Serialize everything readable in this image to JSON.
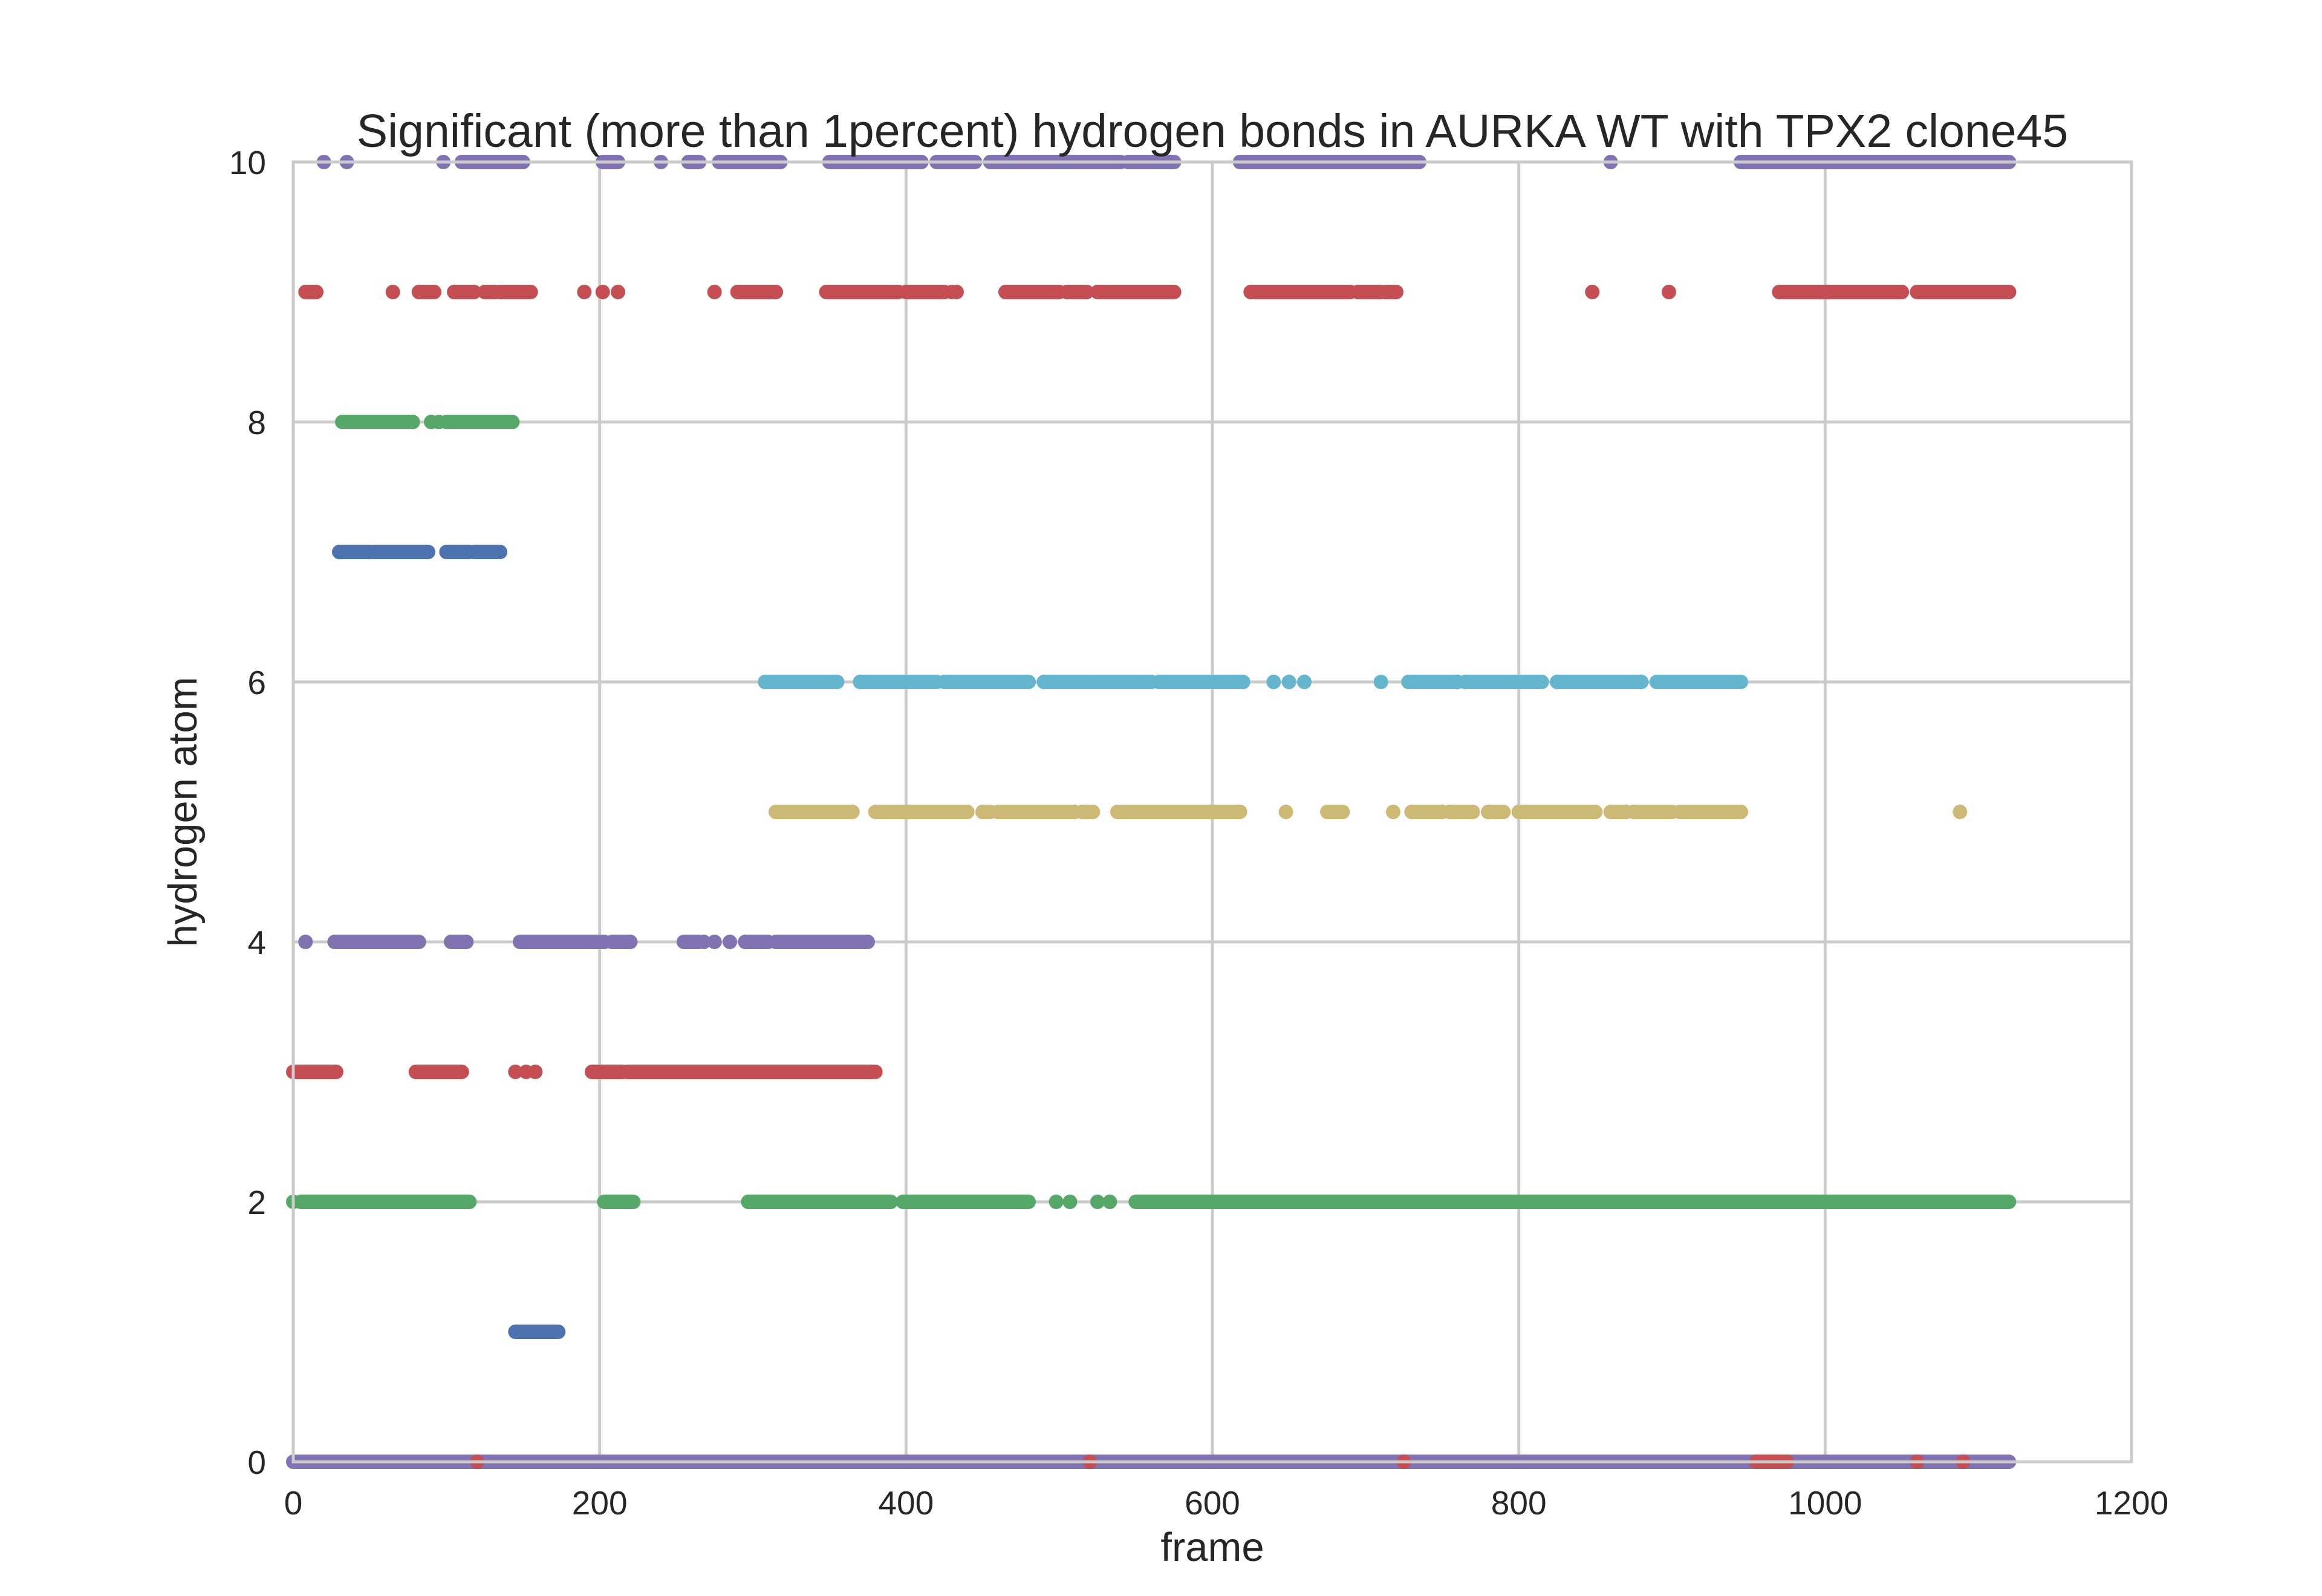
{
  "chart_data": {
    "type": "scatter",
    "title": "Significant (more than 1percent) hydrogen bonds in AURKA WT with TPX2 clone45",
    "xlabel": "frame",
    "ylabel": "hydrogen atom",
    "xlim": [
      0,
      1200
    ],
    "ylim": [
      0,
      10
    ],
    "xticks": [
      0,
      200,
      400,
      600,
      800,
      1000,
      1200
    ],
    "yticks": [
      0,
      2,
      4,
      6,
      8,
      10
    ],
    "grid": true,
    "legend": "none",
    "colors": {
      "blue": "#4c72b0",
      "green": "#55a868",
      "red": "#c44e52",
      "purple": "#8172b2",
      "yellow": "#ccb974",
      "cyan": "#64b5cd",
      "grid": "#cbcbcb",
      "axes_background": "#ffffff",
      "axes_edge": "#cbcbcb"
    },
    "series": [
      {
        "color": "purple",
        "y": 0,
        "points": [],
        "ranges": [
          [
            0,
            1120
          ]
        ]
      },
      {
        "color": "red",
        "y": 0,
        "points": [
          120,
          520,
          725,
          960,
          965,
          1060,
          1090
        ],
        "ranges": [
          [
            955,
            975
          ]
        ]
      },
      {
        "color": "blue",
        "y": 1,
        "points": [],
        "ranges": [
          [
            145,
            173
          ]
        ]
      },
      {
        "color": "green",
        "y": 2,
        "points": [
          0,
          498,
          507,
          525,
          533
        ],
        "ranges": [
          [
            5,
            115
          ],
          [
            203,
            222
          ],
          [
            297,
            382
          ],
          [
            312,
            390
          ],
          [
            398,
            480
          ],
          [
            550,
            1120
          ]
        ]
      },
      {
        "color": "red",
        "y": 3,
        "points": [
          145,
          152,
          158,
          380
        ],
        "ranges": [
          [
            0,
            28
          ],
          [
            80,
            110
          ],
          [
            195,
            215
          ],
          [
            218,
            378
          ]
        ]
      },
      {
        "color": "purple",
        "y": 4,
        "points": [
          8,
          260,
          268,
          275,
          285
        ],
        "ranges": [
          [
            27,
            82
          ],
          [
            103,
            113
          ],
          [
            148,
            203
          ],
          [
            208,
            220
          ],
          [
            255,
            265
          ],
          [
            295,
            310
          ],
          [
            315,
            375
          ]
        ]
      },
      {
        "color": "yellow",
        "y": 5,
        "points": [
          648,
          682,
          718,
          1088
        ],
        "ranges": [
          [
            315,
            365
          ],
          [
            380,
            440
          ],
          [
            450,
            455
          ],
          [
            460,
            510
          ],
          [
            515,
            522
          ],
          [
            538,
            618
          ],
          [
            675,
            685
          ],
          [
            730,
            750
          ],
          [
            755,
            770
          ],
          [
            780,
            790
          ],
          [
            800,
            850
          ],
          [
            860,
            870
          ],
          [
            875,
            900
          ],
          [
            905,
            945
          ]
        ]
      },
      {
        "color": "cyan",
        "y": 6,
        "points": [
          640,
          650,
          660,
          710
        ],
        "ranges": [
          [
            308,
            355
          ],
          [
            370,
            420
          ],
          [
            425,
            480
          ],
          [
            490,
            520
          ],
          [
            522,
            560
          ],
          [
            565,
            620
          ],
          [
            728,
            760
          ],
          [
            765,
            815
          ],
          [
            825,
            880
          ],
          [
            890,
            945
          ]
        ]
      },
      {
        "color": "blue",
        "y": 7,
        "points": [],
        "ranges": [
          [
            30,
            50
          ],
          [
            52,
            88
          ],
          [
            100,
            115
          ],
          [
            118,
            135
          ]
        ]
      },
      {
        "color": "green",
        "y": 8,
        "points": [
          90,
          95
        ],
        "ranges": [
          [
            32,
            78
          ],
          [
            100,
            143
          ]
        ]
      },
      {
        "color": "red",
        "y": 9,
        "points": [
          65,
          190,
          202,
          212,
          275,
          430,
          433,
          848,
          898,
          1050,
          1090
        ],
        "ranges": [
          [
            8,
            15
          ],
          [
            82,
            92
          ],
          [
            105,
            118
          ],
          [
            125,
            132
          ],
          [
            135,
            155
          ],
          [
            290,
            315
          ],
          [
            348,
            395
          ],
          [
            400,
            425
          ],
          [
            465,
            500
          ],
          [
            505,
            518
          ],
          [
            525,
            575
          ],
          [
            625,
            690
          ],
          [
            695,
            710
          ],
          [
            713,
            720
          ],
          [
            970,
            1050
          ],
          [
            1060,
            1120
          ],
          [
            1072,
            1120
          ]
        ]
      },
      {
        "color": "purple",
        "y": 10,
        "points": [
          20,
          35,
          98,
          240,
          860
        ],
        "ranges": [
          [
            110,
            150
          ],
          [
            202,
            212
          ],
          [
            258,
            265
          ],
          [
            278,
            318
          ],
          [
            350,
            410
          ],
          [
            420,
            445
          ],
          [
            455,
            540
          ],
          [
            545,
            575
          ],
          [
            618,
            735
          ],
          [
            945,
            1120
          ]
        ]
      }
    ]
  }
}
